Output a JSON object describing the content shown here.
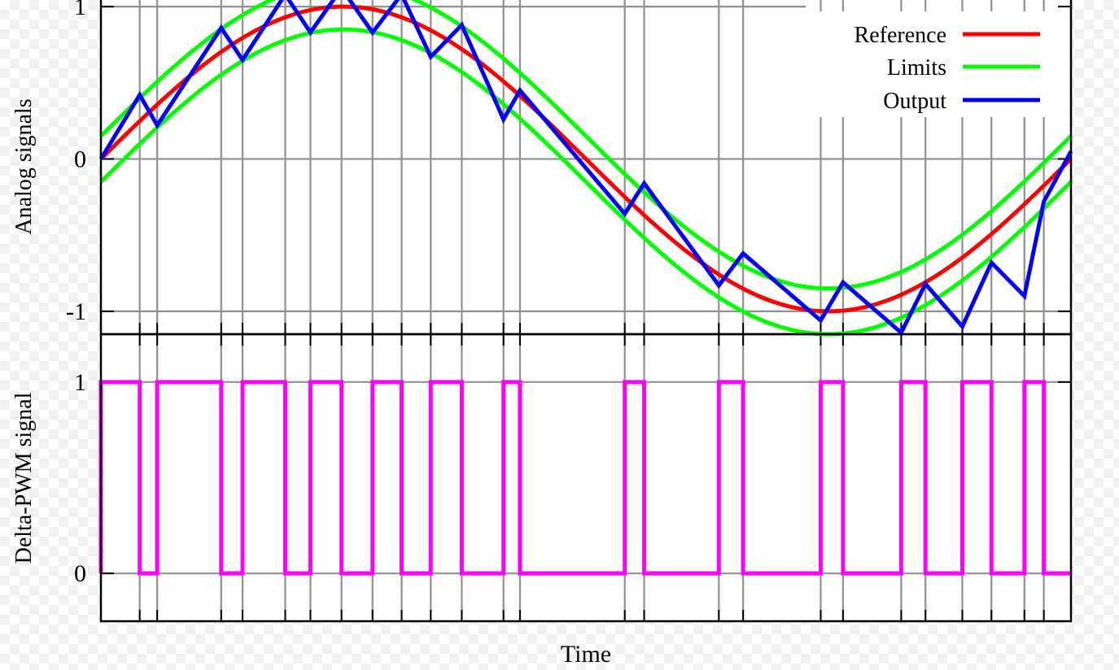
{
  "chart_data": [
    {
      "type": "line",
      "panel": "top",
      "ylabel": "Analog signals",
      "ylim": [
        -1.15,
        1.15
      ],
      "xlim": [
        0,
        1
      ],
      "yticks": [
        {
          "value": 1,
          "label": "1"
        },
        {
          "value": 0,
          "label": "0"
        },
        {
          "value": -1,
          "label": "-1"
        }
      ],
      "grid": true,
      "legend_position": "top-right",
      "series": [
        {
          "name": "Reference",
          "color": "#ff0000",
          "function": "sin(2*pi*t)",
          "offset": 0
        },
        {
          "name": "Limits",
          "color": "#00ff00",
          "function": "sin(2*pi*t) +/- delta",
          "offsets": [
            0.15,
            -0.15
          ]
        },
        {
          "name": "Output",
          "color": "#0000ff",
          "x": [
            0,
            0.04,
            0.058,
            0.124,
            0.146,
            0.19,
            0.216,
            0.248,
            0.28,
            0.31,
            0.34,
            0.372,
            0.415,
            0.432,
            0.54,
            0.56,
            0.637,
            0.662,
            0.742,
            0.765,
            0.825,
            0.85,
            0.888,
            0.918,
            0.952,
            0.972,
            1.0
          ],
          "y": [
            0,
            0.42,
            0.22,
            0.86,
            0.65,
            1.08,
            0.83,
            1.12,
            0.83,
            1.08,
            0.67,
            0.88,
            0.26,
            0.45,
            -0.36,
            -0.16,
            -0.83,
            -0.62,
            -1.06,
            -0.81,
            -1.14,
            -0.82,
            -1.1,
            -0.68,
            -0.9,
            -0.28,
            0.05
          ]
        }
      ]
    },
    {
      "type": "line",
      "panel": "bottom",
      "title": "",
      "xlabel": "Time",
      "ylabel": "Delta-PWM signal",
      "ylim": [
        -0.25,
        1.25
      ],
      "xlim": [
        0,
        1
      ],
      "yticks": [
        {
          "value": 1,
          "label": "1"
        },
        {
          "value": 0,
          "label": "0"
        }
      ],
      "series": [
        {
          "name": "Delta-PWM",
          "color": "#ff00ff",
          "x": [
            0,
            0.04,
            0.058,
            0.124,
            0.146,
            0.19,
            0.216,
            0.248,
            0.28,
            0.31,
            0.34,
            0.372,
            0.415,
            0.432,
            0.54,
            0.56,
            0.637,
            0.662,
            0.742,
            0.765,
            0.825,
            0.85,
            0.888,
            0.918,
            0.952,
            0.972,
            1.0
          ],
          "levels": [
            1,
            0,
            1,
            0,
            1,
            0,
            1,
            0,
            1,
            0,
            1,
            0,
            1,
            0,
            1,
            0,
            1,
            0,
            1,
            0,
            1,
            0,
            1,
            0,
            1,
            0
          ]
        }
      ]
    }
  ]
}
